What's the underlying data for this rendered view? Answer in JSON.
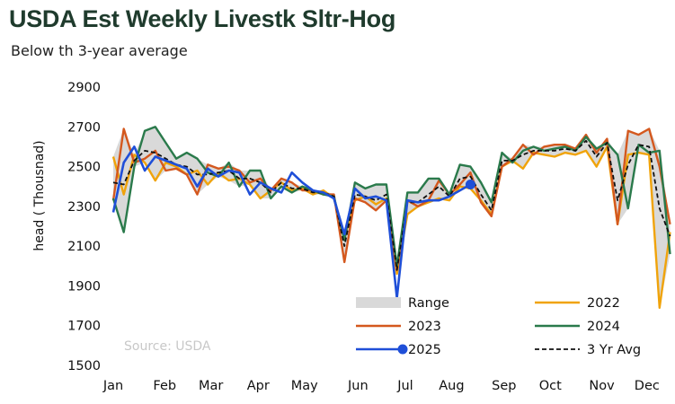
{
  "header": {
    "title": "USDA Est Weekly Livestk Sltr-Hog",
    "subtitle": "Below th 3-year average"
  },
  "source": "Source: USDA",
  "colors": {
    "range": "#d9d9d9",
    "2022": "#f0a30a",
    "2023": "#d4581e",
    "2024": "#2a7a4b",
    "2025": "#1f4fd8",
    "avg": "#111111"
  },
  "chart_data": {
    "type": "line",
    "title": "USDA Est Weekly Livestk Sltr-Hog",
    "ylabel": "head ( Thousnad)",
    "ylim": [
      1500,
      2900
    ],
    "yticks": [
      1500,
      1700,
      1900,
      2100,
      2300,
      2500,
      2700,
      2900
    ],
    "xlim": [
      1,
      52.5
    ],
    "xticks": [
      {
        "label": "Jan",
        "week": 1
      },
      {
        "label": "Feb",
        "week": 5.9
      },
      {
        "label": "Mar",
        "week": 10.3
      },
      {
        "label": "Apr",
        "week": 14.8
      },
      {
        "label": "May",
        "week": 19.2
      },
      {
        "label": "Jun",
        "week": 24.3
      },
      {
        "label": "Jul",
        "week": 28.8
      },
      {
        "label": "Aug",
        "week": 33.2
      },
      {
        "label": "Sep",
        "week": 38.2
      },
      {
        "label": "Oct",
        "week": 42.6
      },
      {
        "label": "Nov",
        "week": 47.5
      },
      {
        "label": "Dec",
        "week": 51.8
      }
    ],
    "legend": [
      "Range",
      "2022",
      "2023",
      "2024",
      "2025",
      "3 Yr Avg"
    ],
    "series": [
      {
        "name": "2022",
        "key": "2022",
        "values": [
          2550,
          2360,
          2560,
          2520,
          2430,
          2520,
          2500,
          2460,
          2480,
          2410,
          2470,
          2430,
          2440,
          2410,
          2340,
          2380,
          2420,
          2380,
          2390,
          2360,
          2380,
          2340,
          2140,
          2330,
          2350,
          2310,
          2340,
          1960,
          2260,
          2300,
          2320,
          2340,
          2330,
          2400,
          2390,
          2330,
          2260,
          2500,
          2530,
          2490,
          2570,
          2560,
          2550,
          2570,
          2560,
          2580,
          2500,
          2600,
          2210,
          2560,
          2570,
          2560,
          1790,
          2170
        ]
      },
      {
        "name": "2023",
        "key": "2023",
        "values": [
          2330,
          2690,
          2520,
          2540,
          2580,
          2480,
          2490,
          2460,
          2360,
          2510,
          2490,
          2500,
          2480,
          2420,
          2440,
          2380,
          2440,
          2420,
          2380,
          2380,
          2360,
          2360,
          2020,
          2340,
          2320,
          2280,
          2330,
          1980,
          2330,
          2300,
          2330,
          2430,
          2360,
          2410,
          2470,
          2320,
          2250,
          2500,
          2540,
          2610,
          2560,
          2600,
          2610,
          2610,
          2590,
          2660,
          2570,
          2640,
          2210,
          2680,
          2660,
          2690,
          2500,
          2210
        ]
      },
      {
        "name": "2024",
        "key": "2024",
        "values": [
          2340,
          2170,
          2500,
          2680,
          2700,
          2620,
          2540,
          2570,
          2540,
          2470,
          2450,
          2520,
          2400,
          2480,
          2480,
          2340,
          2400,
          2370,
          2400,
          2380,
          2360,
          2350,
          2130,
          2420,
          2390,
          2410,
          2410,
          2000,
          2370,
          2370,
          2440,
          2440,
          2360,
          2510,
          2500,
          2420,
          2320,
          2570,
          2520,
          2580,
          2600,
          2580,
          2590,
          2600,
          2580,
          2650,
          2590,
          2620,
          2560,
          2290,
          2610,
          2570,
          2580,
          2060
        ]
      },
      {
        "name": "2025",
        "key": "2025",
        "values": [
          2270,
          2520,
          2600,
          2480,
          2550,
          2530,
          2510,
          2490,
          2400,
          2490,
          2450,
          2480,
          2470,
          2360,
          2420,
          2390,
          2370,
          2470,
          2420,
          2380,
          2370,
          2340,
          2160,
          2390,
          2340,
          2350,
          2330,
          1840,
          2330,
          2320,
          2330,
          2330,
          2350,
          2380,
          2410
        ]
      },
      {
        "name": "3 Yr Avg",
        "key": "avg",
        "values": [
          2420,
          2410,
          2530,
          2580,
          2570,
          2540,
          2510,
          2500,
          2460,
          2460,
          2470,
          2480,
          2440,
          2440,
          2420,
          2370,
          2420,
          2390,
          2390,
          2370,
          2370,
          2350,
          2100,
          2360,
          2350,
          2330,
          2360,
          1980,
          2320,
          2320,
          2360,
          2400,
          2350,
          2440,
          2450,
          2360,
          2280,
          2530,
          2530,
          2560,
          2580,
          2580,
          2580,
          2590,
          2580,
          2630,
          2550,
          2620,
          2330,
          2510,
          2610,
          2600,
          2290,
          2150
        ]
      }
    ]
  }
}
